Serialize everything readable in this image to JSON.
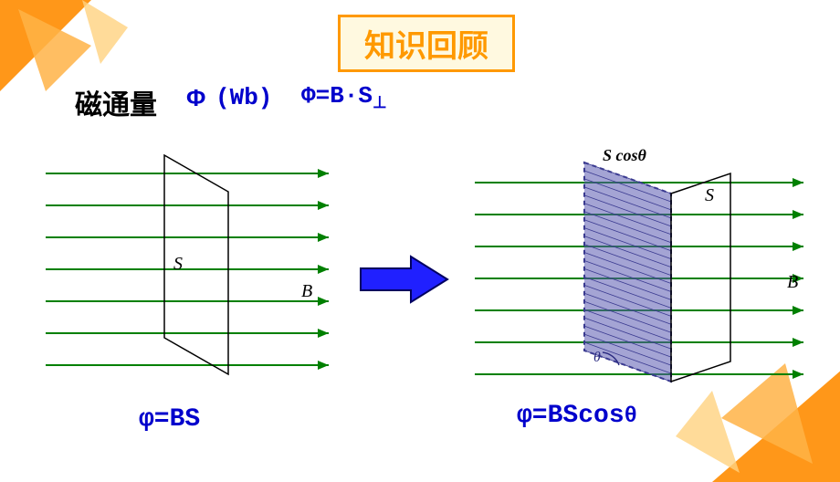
{
  "title": {
    "text": "知识回顾",
    "border_color": "#ff9900",
    "bg": "#fff9e0",
    "color": "#ff9900",
    "fontsize": 34
  },
  "line1": {
    "flux_label": "磁通量",
    "flux_label_color": "#000000",
    "flux_label_size": 30,
    "phi": "Φ",
    "unit": "(Wb)",
    "eq": "Φ=B·S",
    "perp": "⊥",
    "accent_color": "#0000cc",
    "eq_size": 26
  },
  "formulas": {
    "left": "φ=BS",
    "right_prefix": "φ=BScos",
    "right_theta": "θ",
    "color": "#0000cc",
    "size": 28
  },
  "diagram": {
    "field_line_color": "#008000",
    "plane_stroke": "#000000",
    "plane_label_font": "italic 20px 'Times New Roman', serif",
    "S_text": "S",
    "B_text": "B",
    "theta_text": "θ",
    "proj_label": "S cosθ",
    "proj_fill": "#5a5ab0",
    "proj_hatch": "#3a3a90",
    "arrow": {
      "fill": "#2020ff",
      "stroke": "#000060"
    },
    "field_rows": 7
  },
  "corner_triangles": {
    "colors": [
      "#ff8c00",
      "#ffb347",
      "#ffd27f"
    ]
  }
}
